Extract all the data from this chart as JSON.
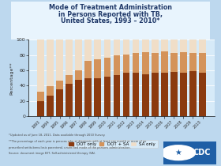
{
  "years": [
    "1993",
    "1994",
    "1995",
    "1996",
    "1997",
    "1998",
    "1999",
    "2000",
    "2001",
    "2002",
    "2003",
    "2004",
    "2005",
    "2006",
    "2007",
    "2008",
    "2009",
    "2010"
  ],
  "dot_only": [
    20,
    27,
    35,
    42,
    48,
    50,
    50,
    52,
    54,
    57,
    57,
    55,
    57,
    57,
    58,
    57,
    59,
    57
  ],
  "dot_sa": [
    12,
    12,
    12,
    12,
    12,
    22,
    25,
    25,
    26,
    24,
    26,
    29,
    26,
    28,
    25,
    27,
    24,
    26
  ],
  "sa_only": [
    68,
    61,
    53,
    46,
    40,
    28,
    25,
    23,
    20,
    19,
    17,
    16,
    17,
    15,
    17,
    16,
    17,
    17
  ],
  "colors": {
    "dot_only": "#8B3A0F",
    "dot_sa": "#D4935A",
    "sa_only": "#F0DEC8"
  },
  "title_line1": "Mode of Treatment Administration",
  "title_line2": "in Persons Reported with TB,",
  "title_line3": "United States, 1993 – 2010*",
  "ylabel": "Percentage**",
  "legend_labels": [
    "DOT only",
    "DOT + SA",
    "SA only"
  ],
  "background_color": "#BDD8EE",
  "plot_bg_color": "#D6EAF8",
  "title_box_color": "#E8F4FD",
  "ylim": [
    0,
    100
  ],
  "yticks": [
    0,
    20,
    40,
    60,
    80,
    100
  ],
  "footnote1": "*Updated as of June 18, 2011. Data available through 2010 Survey.",
  "footnote2": "**The percentage of each year is persons who at diagnosis with at least one month or more of go",
  "footnote3": "prescribed antituberculosis parenteral, unverified mode of the persons administration.",
  "footnote4": "Source: document image EIIT, Self-administered therapy (SA)."
}
